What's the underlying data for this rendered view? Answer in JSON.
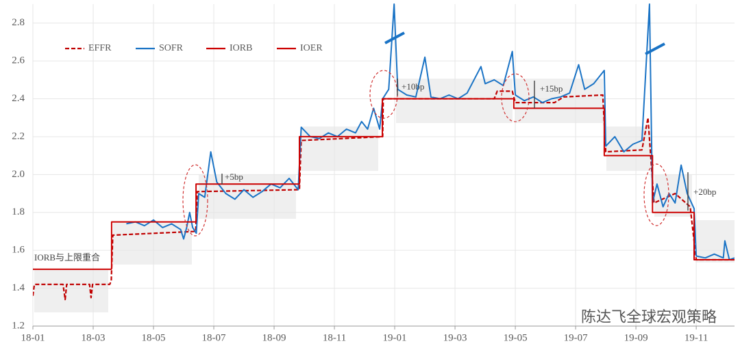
{
  "chart_data": {
    "type": "line",
    "xlim": [
      0,
      23.27
    ],
    "ylim": [
      1.2,
      2.9
    ],
    "xticks": [
      {
        "value": 0,
        "label": "18-01"
      },
      {
        "value": 2,
        "label": "18-03"
      },
      {
        "value": 4,
        "label": "18-05"
      },
      {
        "value": 6,
        "label": "18-07"
      },
      {
        "value": 8,
        "label": "18-09"
      },
      {
        "value": 10,
        "label": "18-11"
      },
      {
        "value": 12,
        "label": "19-01"
      },
      {
        "value": 14,
        "label": "19-03"
      },
      {
        "value": 16,
        "label": "19-05"
      },
      {
        "value": 18,
        "label": "19-07"
      },
      {
        "value": 20,
        "label": "19-09"
      },
      {
        "value": 22,
        "label": "19-11"
      }
    ],
    "yticks": [
      1.2,
      1.4,
      1.6,
      1.8,
      {
        "value": 2,
        "label": "2.0"
      },
      2.2,
      2.4,
      2.6,
      2.8
    ],
    "grid": true,
    "series": [
      {
        "name": "EFFR",
        "color": "#c00000",
        "dashed": true,
        "x": [
          0,
          0.05,
          1.0,
          1.07,
          1.12,
          1.88,
          1.93,
          1.98,
          2.55,
          2.6,
          2.65,
          5.4,
          5.45,
          8.84,
          8.9,
          11.6,
          11.62,
          15.3,
          15.4,
          15.9,
          16.0,
          17.3,
          17.6,
          18.9,
          19.0,
          20.2,
          20.4,
          20.6,
          21.3,
          21.8,
          22.0,
          23.27
        ],
        "values": [
          1.36,
          1.42,
          1.42,
          1.34,
          1.42,
          1.42,
          1.35,
          1.42,
          1.42,
          1.44,
          1.68,
          1.7,
          1.91,
          1.92,
          2.18,
          2.2,
          2.4,
          2.4,
          2.44,
          2.44,
          2.38,
          2.38,
          2.41,
          2.42,
          2.12,
          2.13,
          2.3,
          1.85,
          1.9,
          1.83,
          1.55,
          1.55
        ]
      },
      {
        "name": "SOFR",
        "color": "#1a73c5",
        "x": [
          3.1,
          3.4,
          3.7,
          4.0,
          4.3,
          4.6,
          4.9,
          5.0,
          5.1,
          5.2,
          5.3,
          5.42,
          5.5,
          5.7,
          5.9,
          6.1,
          6.4,
          6.7,
          7.0,
          7.3,
          7.6,
          7.9,
          8.2,
          8.5,
          8.8,
          8.9,
          9.2,
          9.5,
          9.8,
          10.1,
          10.4,
          10.7,
          10.9,
          11.1,
          11.3,
          11.5,
          11.6,
          11.8,
          11.98,
          12.1,
          12.4,
          12.7,
          13.0,
          13.2,
          13.5,
          13.8,
          14.1,
          14.4,
          14.86,
          15.0,
          15.3,
          15.6,
          15.9,
          16.0,
          16.3,
          16.6,
          16.9,
          17.2,
          17.5,
          17.8,
          18.1,
          18.3,
          18.6,
          18.95,
          19.0,
          19.3,
          19.6,
          19.9,
          20.2,
          20.45,
          20.55,
          20.7,
          20.9,
          21.1,
          21.3,
          21.5,
          21.7,
          21.93,
          22.0,
          22.3,
          22.6,
          22.9,
          22.95,
          23.1,
          23.27
        ],
        "values": [
          1.74,
          1.75,
          1.73,
          1.76,
          1.72,
          1.74,
          1.71,
          1.66,
          1.72,
          1.8,
          1.72,
          1.69,
          1.9,
          1.88,
          2.12,
          1.96,
          1.9,
          1.87,
          1.92,
          1.88,
          1.91,
          1.95,
          1.93,
          1.98,
          1.92,
          2.25,
          2.2,
          2.19,
          2.22,
          2.2,
          2.24,
          2.22,
          2.28,
          2.24,
          2.35,
          2.24,
          2.4,
          2.45,
          2.9,
          2.45,
          2.42,
          2.41,
          2.62,
          2.41,
          2.4,
          2.42,
          2.4,
          2.43,
          2.57,
          2.48,
          2.5,
          2.47,
          2.65,
          2.42,
          2.39,
          2.41,
          2.38,
          2.4,
          2.41,
          2.43,
          2.58,
          2.45,
          2.48,
          2.55,
          2.15,
          2.2,
          2.12,
          2.16,
          2.18,
          2.9,
          1.85,
          1.95,
          1.83,
          1.9,
          1.85,
          2.05,
          1.9,
          1.82,
          1.57,
          1.56,
          1.58,
          1.56,
          1.65,
          1.55,
          1.56
        ]
      },
      {
        "name": "IORB",
        "color": "#cc0000",
        "x": [
          0,
          2.61
        ],
        "values": [
          1.5,
          1.5
        ]
      },
      {
        "name": "IOER",
        "color": "#cc0000",
        "x": [
          2.61,
          2.61,
          5.41,
          5.41,
          8.84,
          8.84,
          11.59,
          11.59,
          15.95,
          15.95,
          18.95,
          18.95,
          20.55,
          20.55,
          21.93,
          21.93,
          23.27
        ],
        "values": [
          1.5,
          1.75,
          1.75,
          1.95,
          1.95,
          2.2,
          2.2,
          2.4,
          2.4,
          2.35,
          2.35,
          2.1,
          2.1,
          1.8,
          1.8,
          1.55,
          1.55
        ]
      }
    ],
    "annotations": [
      "IORB与上限重合",
      "+5bp",
      "+10bp",
      "+15bp",
      "+20bp"
    ],
    "watermark": "陈达飞全球宏观策略"
  }
}
